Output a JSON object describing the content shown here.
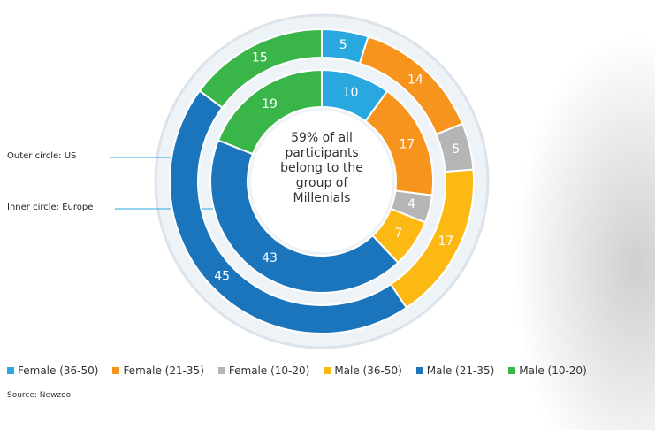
{
  "chart_data": {
    "type": "donut",
    "categories": [
      "Female (36-50)",
      "Female (21-35)",
      "Female (10-20)",
      "Male (36-50)",
      "Male (21-35)",
      "Male (10-20)"
    ],
    "colors": [
      "#29a8e0",
      "#f7941d",
      "#b5b5b5",
      "#fdb913",
      "#1b75bc",
      "#3ab54a"
    ],
    "series": [
      {
        "name": "Outer circle: US",
        "values": [
          5,
          14,
          5,
          17,
          45,
          15
        ]
      },
      {
        "name": "Inner circle: Europe",
        "values": [
          10,
          17,
          4,
          7,
          43,
          19
        ]
      }
    ],
    "center_text": "59% of all participants belong to the group of Millenials",
    "source": "Source: Newzoo"
  }
}
